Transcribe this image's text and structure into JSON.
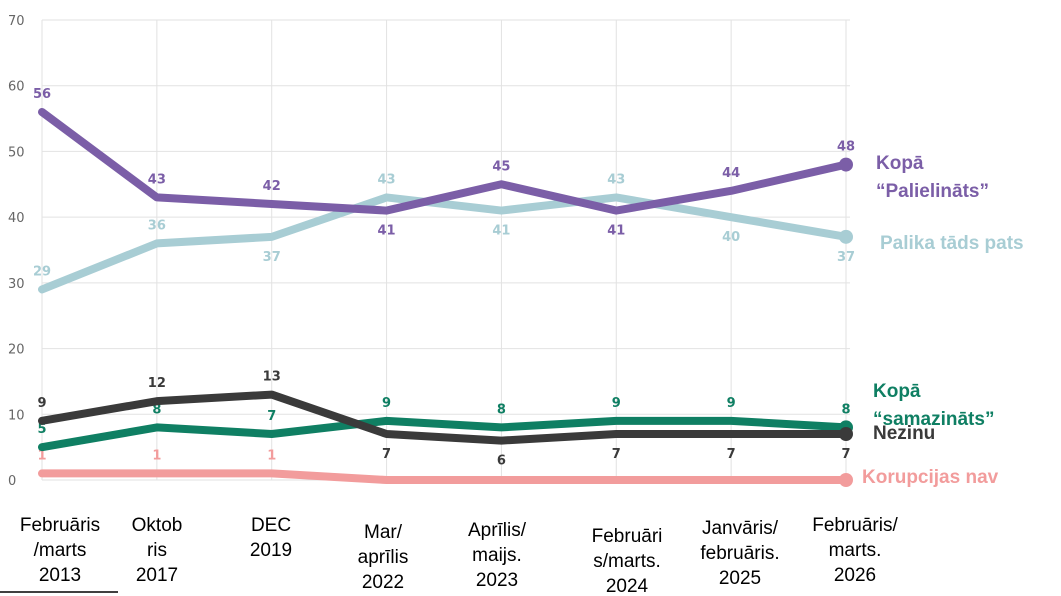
{
  "chart_data": {
    "type": "line",
    "categories": [
      "Februāris\n/marts\n2013",
      "Oktob\nris\n2017",
      "DEC\n2019",
      "Mar/\naprīlis\n2022",
      "Aprīlis/\nmaijs.\n2023",
      "Februāri\ns/marts.\n2024",
      "Janvāris/\nfebruāris.\n2025",
      "Februāris/\nmarts.\n2026"
    ],
    "series": [
      {
        "name": "Palika tāds pats",
        "color": "#a8cdd4",
        "values": [
          29,
          36,
          37,
          43,
          41,
          43,
          40,
          37
        ]
      },
      {
        "name": "Kopā\n“Palielināts”",
        "color": "#7b5ea7",
        "values": [
          56,
          43,
          42,
          41,
          45,
          41,
          44,
          48
        ]
      },
      {
        "name": "Korupcijas nav",
        "color": "#f29c9c",
        "values": [
          1,
          1,
          1,
          0,
          0,
          0,
          0,
          0
        ],
        "value_labels": [
          "1",
          "1",
          "1",
          null,
          null,
          null,
          null,
          null
        ]
      },
      {
        "name": "Kopā\n“samazināts”",
        "color": "#0f7f63",
        "values": [
          5,
          8,
          7,
          9,
          8,
          9,
          9,
          8
        ]
      },
      {
        "name": "Nezinu",
        "color": "#3a3a3a",
        "values": [
          9,
          12,
          13,
          7,
          6,
          7,
          7,
          7
        ]
      }
    ],
    "ylim": [
      0,
      70
    ],
    "yticks": [
      0,
      10,
      20,
      30,
      40,
      50,
      60,
      70
    ],
    "grid": true
  }
}
